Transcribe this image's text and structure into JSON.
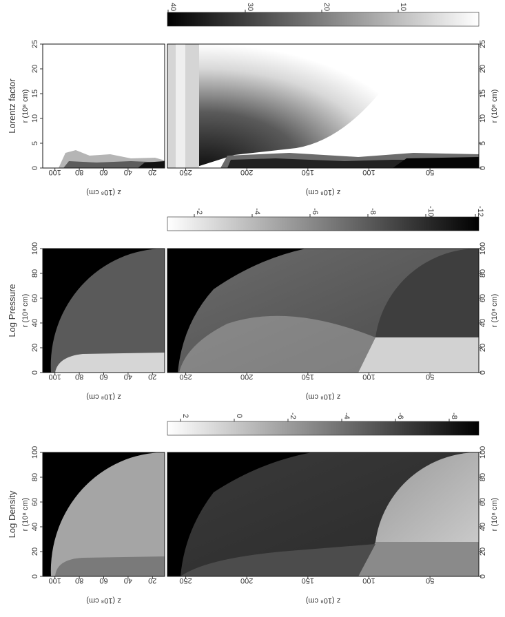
{
  "chart_data": [
    {
      "type": "heatmap",
      "title": "Lorentz factor",
      "colorbar_ticks": [
        "40",
        "30",
        "20",
        "10"
      ],
      "colorbar_order": "dark-to-light",
      "panels": [
        {
          "xlabel": "r (10⁸ cm)",
          "ylabel": "z (10⁸ cm)",
          "x_ticks": [
            "0",
            "5",
            "10",
            "15",
            "20",
            "25"
          ],
          "y_ticks": [
            "100",
            "80",
            "60",
            "40",
            "20"
          ],
          "xlim": [
            0,
            25
          ],
          "ylim": [
            10,
            110
          ]
        },
        {
          "xlabel": "r (10⁸ cm)",
          "ylabel": "z (10⁸ cm)",
          "x_ticks": [
            "0",
            "5",
            "10",
            "15",
            "20",
            "25"
          ],
          "y_ticks": [
            "250",
            "200",
            "150",
            "100",
            "50"
          ],
          "xlim": [
            0,
            25
          ],
          "ylim": [
            10,
            265
          ]
        }
      ]
    },
    {
      "type": "heatmap",
      "title": "Log Pressure",
      "colorbar_ticks": [
        "-2",
        "-4",
        "-6",
        "-8",
        "-10",
        "-12"
      ],
      "colorbar_order": "light-to-dark",
      "panels": [
        {
          "xlabel": "r (10⁸ cm)",
          "ylabel": "z (10⁸ cm)",
          "x_ticks": [
            "0",
            "20",
            "40",
            "60",
            "80",
            "100"
          ],
          "y_ticks": [
            "100",
            "80",
            "60",
            "40",
            "20"
          ],
          "xlim": [
            0,
            100
          ],
          "ylim": [
            10,
            110
          ]
        },
        {
          "xlabel": "r (10⁸ cm)",
          "ylabel": "z (10⁸ cm)",
          "x_ticks": [
            "0",
            "20",
            "40",
            "60",
            "80",
            "100"
          ],
          "y_ticks": [
            "250",
            "200",
            "150",
            "100",
            "50"
          ],
          "xlim": [
            0,
            100
          ],
          "ylim": [
            10,
            265
          ]
        }
      ]
    },
    {
      "type": "heatmap",
      "title": "Log Density",
      "colorbar_ticks": [
        "2",
        "0",
        "-2",
        "-4",
        "-6",
        "-8"
      ],
      "colorbar_order": "light-to-dark",
      "panels": [
        {
          "xlabel": "r (10⁸ cm)",
          "ylabel": "z (10⁸ cm)",
          "x_ticks": [
            "0",
            "20",
            "40",
            "60",
            "80",
            "100"
          ],
          "y_ticks": [
            "100",
            "80",
            "60",
            "40",
            "20"
          ],
          "xlim": [
            0,
            100
          ],
          "ylim": [
            10,
            110
          ]
        },
        {
          "xlabel": "r (10⁸ cm)",
          "ylabel": "z (10⁸ cm)",
          "x_ticks": [
            "0",
            "20",
            "40",
            "60",
            "80",
            "100"
          ],
          "y_ticks": [
            "250",
            "200",
            "150",
            "100",
            "50"
          ],
          "xlim": [
            0,
            100
          ],
          "ylim": [
            10,
            265
          ]
        }
      ]
    }
  ]
}
